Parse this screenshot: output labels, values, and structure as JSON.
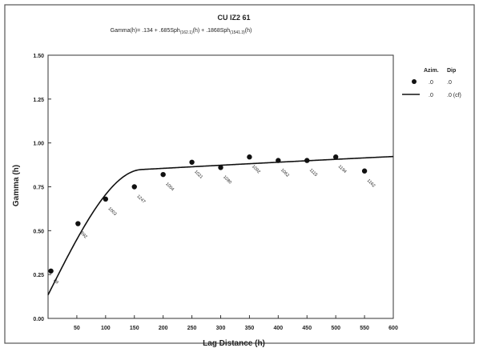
{
  "chart_data": {
    "type": "scatter",
    "title": "CU IZ2 61",
    "subtitle": "Gamma(h)= .134 + .685Sph(162.1)(h) + .1868Sph(1541.3)(h)",
    "subtitle_parts": {
      "lead": "Gamma(h)= .134 + .685Sph",
      "sub1": "(162.1)",
      "mid": "(h) + .1868Sph",
      "sub2": "(1541.3)",
      "tail": "(h)"
    },
    "xlabel": "Lag Distance (h)",
    "ylabel": "Gamma (h)",
    "xlim": [
      0,
      600
    ],
    "ylim": [
      0,
      1.5
    ],
    "xticks": [
      50,
      100,
      150,
      200,
      250,
      300,
      350,
      400,
      450,
      500,
      550,
      600
    ],
    "yticks": [
      "0.00",
      "0.25",
      "0.50",
      "0.75",
      "1.00",
      "1.25",
      "1.50"
    ],
    "legend": {
      "position": "top-right",
      "header": [
        "Azim.",
        "Dip"
      ],
      "entries": [
        {
          "marker": "dot",
          "azim": ".0",
          "dip": ".0"
        },
        {
          "marker": "line",
          "azim": ".0",
          "dip": ".0 (cf)"
        }
      ]
    },
    "experimental": [
      {
        "x": 5,
        "y": 0.27,
        "pairs": "89"
      },
      {
        "x": 52,
        "y": 0.54,
        "pairs": "592"
      },
      {
        "x": 100,
        "y": 0.68,
        "pairs": "1003"
      },
      {
        "x": 150,
        "y": 0.75,
        "pairs": "1247"
      },
      {
        "x": 200,
        "y": 0.82,
        "pairs": "1004"
      },
      {
        "x": 250,
        "y": 0.89,
        "pairs": "1021"
      },
      {
        "x": 300,
        "y": 0.86,
        "pairs": "1080"
      },
      {
        "x": 350,
        "y": 0.92,
        "pairs": "1092"
      },
      {
        "x": 400,
        "y": 0.9,
        "pairs": "1062"
      },
      {
        "x": 450,
        "y": 0.9,
        "pairs": "1115"
      },
      {
        "x": 500,
        "y": 0.92,
        "pairs": "1194"
      },
      {
        "x": 550,
        "y": 0.84,
        "pairs": "1162"
      }
    ],
    "model": {
      "nugget": 0.134,
      "structures": [
        {
          "type": "spherical",
          "sill": 0.685,
          "range": 162.1
        },
        {
          "type": "spherical",
          "sill": 0.1868,
          "range": 1541.3
        }
      ]
    },
    "grid": false
  }
}
